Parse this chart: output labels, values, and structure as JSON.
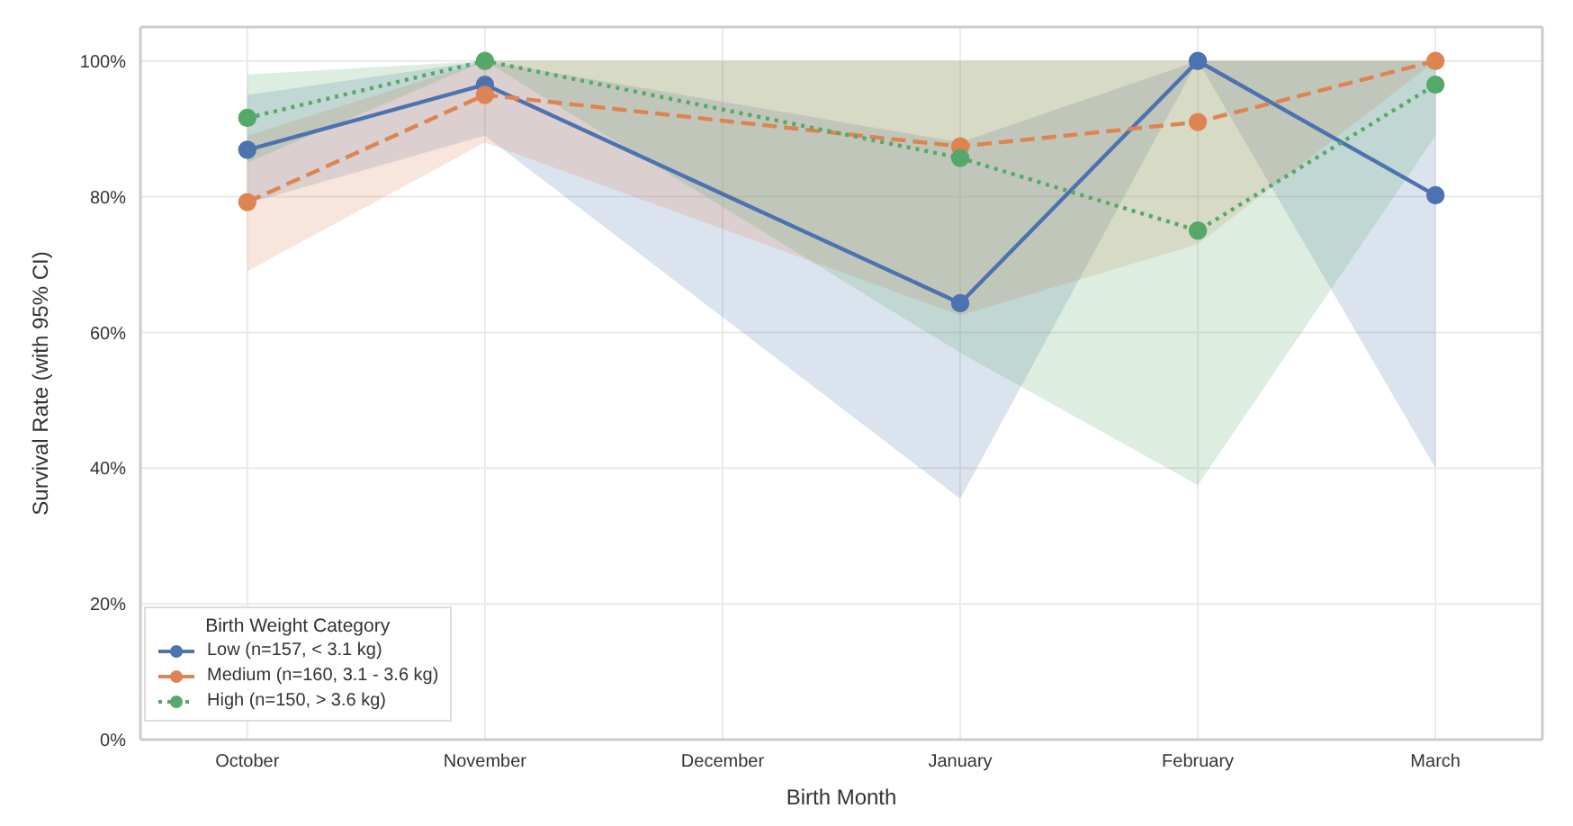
{
  "chart_data": {
    "type": "line",
    "xlabel": "Birth Month",
    "ylabel": "Survival Rate (with 95% CI)",
    "legend_title": "Birth Weight Category",
    "categories": [
      "October",
      "November",
      "December",
      "January",
      "February",
      "March"
    ],
    "series": [
      {
        "name": "Low (n=157, < 3.1 kg)",
        "color": "#4c72b0",
        "line_style": "solid",
        "values": [
          86.9,
          96.5,
          null,
          64.3,
          100,
          80.2
        ],
        "lower": [
          79,
          89,
          null,
          35.5,
          100,
          40
        ],
        "upper": [
          95,
          100,
          null,
          88,
          100,
          100
        ]
      },
      {
        "name": "Medium (n=160, 3.1 - 3.6 kg)",
        "color": "#dd8452",
        "line_style": "dashed",
        "values": [
          79.2,
          95,
          null,
          87.4,
          91,
          100
        ],
        "lower": [
          69,
          88,
          null,
          62.5,
          73,
          100
        ],
        "upper": [
          89,
          100,
          null,
          100,
          100,
          100
        ]
      },
      {
        "name": "High (n=150, > 3.6 kg)",
        "color": "#55a868",
        "line_style": "dotted",
        "values": [
          91.6,
          100,
          null,
          85.7,
          75,
          96.5
        ],
        "lower": [
          85,
          100,
          null,
          57,
          37.5,
          89
        ],
        "upper": [
          98,
          100,
          null,
          100,
          100,
          100
        ]
      }
    ],
    "ylim": [
      0,
      105
    ],
    "yticks": [
      {
        "value": 0,
        "label": "0%"
      },
      {
        "value": 20,
        "label": "20%"
      },
      {
        "value": 40,
        "label": "40%"
      },
      {
        "value": 60,
        "label": "60%"
      },
      {
        "value": 80,
        "label": "80%"
      },
      {
        "value": 100,
        "label": "100%"
      }
    ],
    "grid": true,
    "legend": "bottom left",
    "marker": "circle"
  }
}
